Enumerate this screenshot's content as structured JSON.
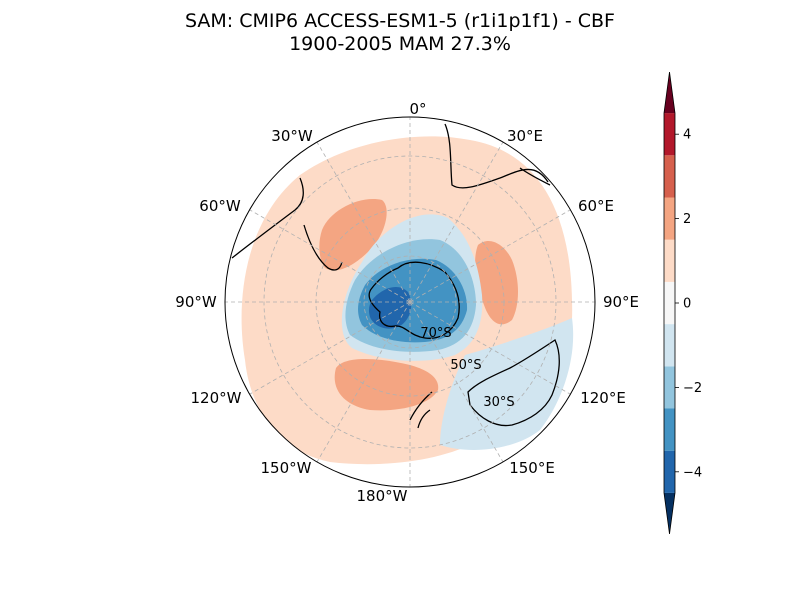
{
  "title": {
    "line1": "SAM: CMIP6 ACCESS-ESM1-5 (r1i1p1f1) - CBF",
    "line2": "1900-2005 MAM 27.3%"
  },
  "map": {
    "projection": "south-polar-stereographic",
    "longitude_labels": [
      "0°",
      "30°E",
      "60°E",
      "90°E",
      "120°E",
      "150°E",
      "180°W",
      "150°W",
      "120°W",
      "90°W",
      "60°W",
      "30°W"
    ],
    "latitude_labels": [
      "70°S",
      "50°S",
      "30°S"
    ],
    "coastlines": true,
    "gridlines": true
  },
  "chart_data": {
    "type": "heatmap",
    "title": "SAM: CMIP6 ACCESS-ESM1-5 (r1i1p1f1) - CBF 1900-2005 MAM 27.3%",
    "pattern_description": "Negative (blue) anomaly centered over Antarctica, with a ring of weak positive (red) anomalies at mid-latitudes and local maxima over the South Atlantic, southern Indian Ocean and South Pacific; weak negative over the Australia–New Zealand sector.",
    "colorbar": {
      "levels": [
        -5,
        -4.5,
        -3.5,
        -2.5,
        -1.5,
        -0.5,
        0.5,
        1.5,
        2.5,
        3.5,
        4.5,
        5
      ],
      "colors": [
        "#053061",
        "#2166ac",
        "#4393c3",
        "#92c5de",
        "#d1e5f0",
        "#f7f7f7",
        "#fddbc7",
        "#f4a582",
        "#d6604d",
        "#b2182b",
        "#67001f"
      ],
      "ticks": [
        "−4",
        "−2",
        "0",
        "2",
        "4"
      ],
      "tick_values": [
        -4,
        -2,
        0,
        2,
        4
      ],
      "range": [
        -5,
        5
      ],
      "extend": "both"
    }
  }
}
